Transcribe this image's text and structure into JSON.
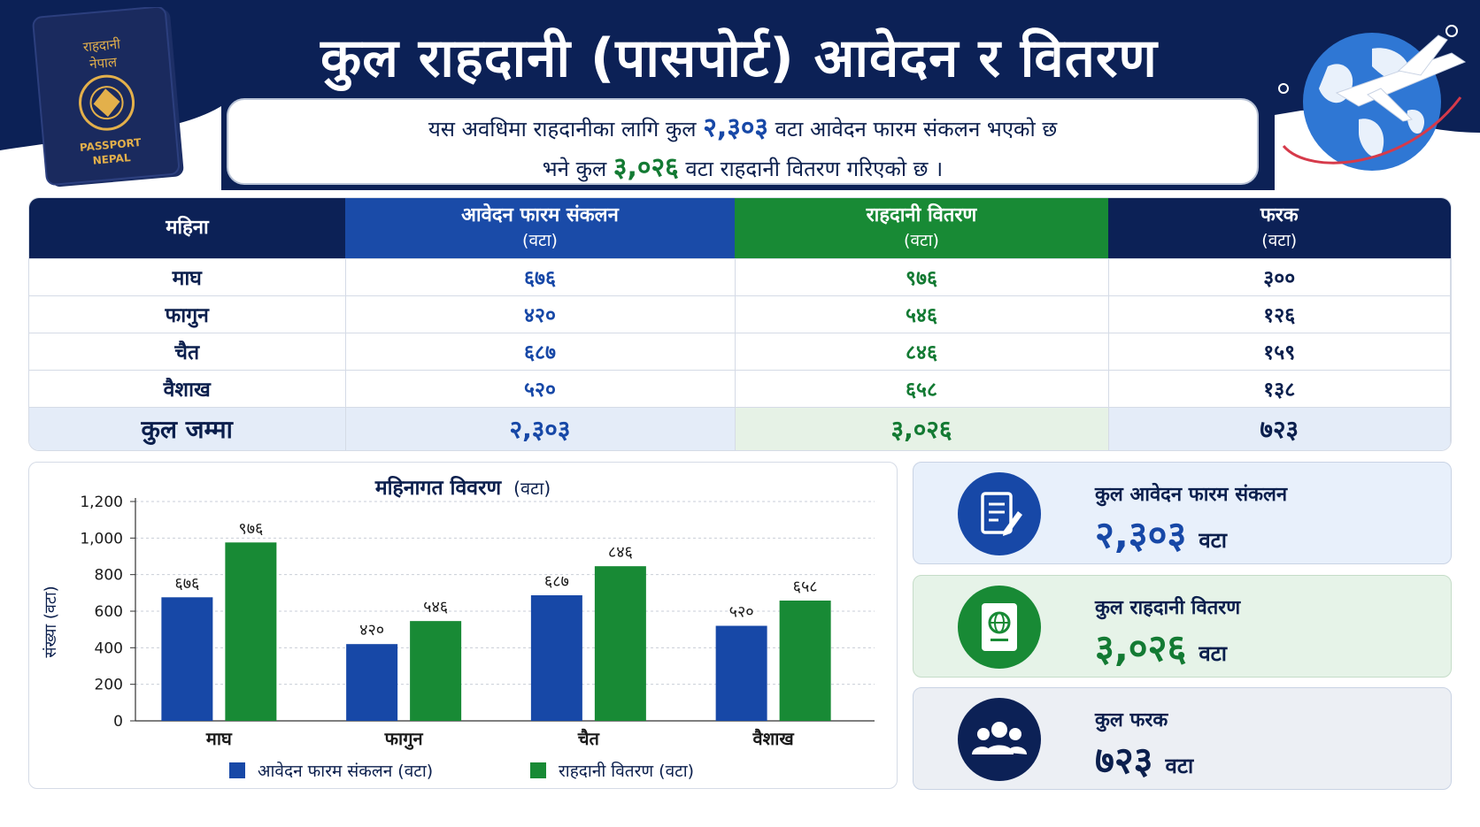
{
  "header": {
    "title": "कुल राहदानी (पासपोर्ट) आवेदन र वितरण",
    "summary_line1_pre": "यस अवधिमा राहदानीका लागि कुल",
    "summary_line1_num": "२,३०३",
    "summary_line1_post": "वटा आवेदन फारम संकलन भएको छ",
    "summary_line2_pre": "भने कुल",
    "summary_line2_num": "३,०२६",
    "summary_line2_post": "वटा राहदानी वितरण गरिएको छ ।",
    "passport_text_top": "राहदानी",
    "passport_text_top2": "नेपाल",
    "passport_text_bottom": "PASSPORT",
    "passport_text_bottom2": "NEPAL"
  },
  "table": {
    "headers": [
      {
        "label": "महिना",
        "sub": ""
      },
      {
        "label": "आवेदन फारम संकलन",
        "sub": "(वटा)"
      },
      {
        "label": "राहदानी वितरण",
        "sub": "(वटा)"
      },
      {
        "label": "फरक",
        "sub": "(वटा)"
      }
    ],
    "rows": [
      {
        "month": "माघ",
        "apps": "६७६",
        "dist": "९७६",
        "diff": "३००"
      },
      {
        "month": "फागुन",
        "apps": "४२०",
        "dist": "५४६",
        "diff": "१२६"
      },
      {
        "month": "चैत",
        "apps": "६८७",
        "dist": "८४६",
        "diff": "१५९"
      },
      {
        "month": "वैशाख",
        "apps": "५२०",
        "dist": "६५८",
        "diff": "१३८"
      }
    ],
    "total": {
      "month": "कुल जम्मा",
      "apps": "२,३०३",
      "dist": "३,०२६",
      "diff": "७२३"
    }
  },
  "chart_data": {
    "type": "bar",
    "title": "महिनागत विवरण",
    "title_unit": "(वटा)",
    "ylabel": "संख्या (वटा)",
    "xlabel": "",
    "categories": [
      "माघ",
      "फागुन",
      "चैत",
      "वैशाख"
    ],
    "ylim": [
      0,
      1200
    ],
    "yticks": [
      0,
      200,
      400,
      600,
      800,
      1000,
      1200
    ],
    "ytick_labels": [
      "0",
      "200",
      "400",
      "600",
      "800",
      "1,000",
      "1,200"
    ],
    "grid": true,
    "legend": "bottom",
    "series": [
      {
        "name": "आवेदन फारम संकलन (वटा)",
        "color": "#1748a7",
        "values": [
          676,
          420,
          687,
          520
        ],
        "labels": [
          "६७६",
          "४२०",
          "६८७",
          "५२०"
        ]
      },
      {
        "name": "राहदानी वितरण (वटा)",
        "color": "#188a35",
        "values": [
          976,
          546,
          846,
          658
        ],
        "labels": [
          "९७६",
          "५४६",
          "८४६",
          "६५८"
        ]
      }
    ]
  },
  "stats": [
    {
      "label": "कुल आवेदन फारम संकलन",
      "value": "२,३०३",
      "unit": "वटा",
      "icon": "document-pen-icon"
    },
    {
      "label": "कुल राहदानी वितरण",
      "value": "३,०२६",
      "unit": "वटा",
      "icon": "passport-icon"
    },
    {
      "label": "कुल फरक",
      "value": "७२३",
      "unit": "वटा",
      "icon": "people-group-icon"
    }
  ],
  "colors": {
    "navy": "#0c2156",
    "blue": "#1748a7",
    "green": "#188a35"
  }
}
